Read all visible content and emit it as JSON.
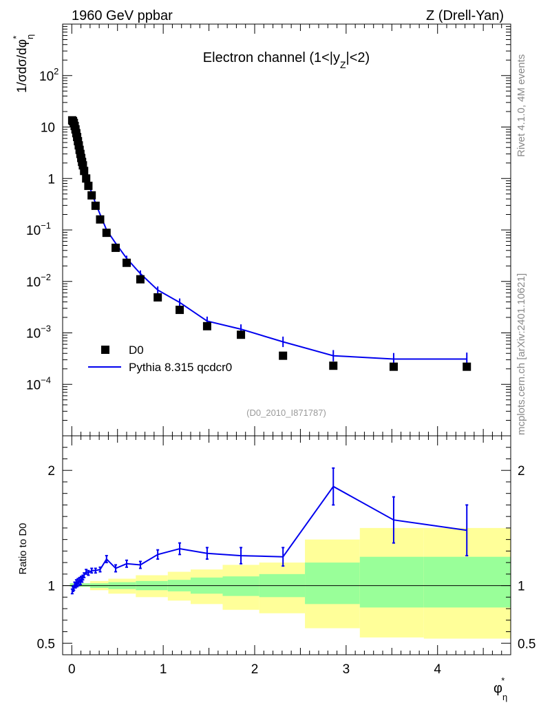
{
  "header": {
    "left": "1960 GeV ppbar",
    "right": "Z (Drell-Yan)"
  },
  "side": {
    "rivet": "Rivet 4.1.0,  4M events",
    "mcplots": "mcplots.cern.ch [arXiv:2401.10621]"
  },
  "colors": {
    "mc": "#0000ee",
    "data": "#000000",
    "band_outer": "#ffff99",
    "band_inner": "#99ff99"
  },
  "chart_data": [
    {
      "type": "scatter",
      "title": "Electron channel (1<|yZ|<2)",
      "title_main": "Electron channel (1<|y",
      "title_sub": "Z",
      "title_end": "|<2)",
      "ylabel": "1/σdσ/dφ*η",
      "ylabel_main": "1/σdσ/dφ",
      "ylabel_sup": "*",
      "ylabel_sub": "η",
      "yscale": "log",
      "xlim": [
        -0.1,
        4.8
      ],
      "ylim": [
        1e-05,
        1000
      ],
      "y_ticks": [
        {
          "v": 0.0001,
          "base": "10",
          "exp": "−4"
        },
        {
          "v": 0.001,
          "base": "10",
          "exp": "−3"
        },
        {
          "v": 0.01,
          "base": "10",
          "exp": "−2"
        },
        {
          "v": 0.1,
          "base": "10",
          "exp": "−1"
        },
        {
          "v": 1,
          "base": "1",
          "exp": ""
        },
        {
          "v": 10,
          "base": "10",
          "exp": ""
        },
        {
          "v": 100,
          "base": "10",
          "exp": "2"
        }
      ],
      "watermark": "(D0_2010_I871787)",
      "legend": [
        {
          "label": "D0",
          "kind": "marker"
        },
        {
          "label": "Pythia 8.315 qcdcr0",
          "kind": "line"
        }
      ],
      "series": [
        {
          "name": "D0",
          "x": [
            0.0045,
            0.0135,
            0.0225,
            0.0315,
            0.0405,
            0.0495,
            0.0585,
            0.0675,
            0.0765,
            0.0855,
            0.0945,
            0.1035,
            0.1125,
            0.1215,
            0.135,
            0.1575,
            0.1815,
            0.2175,
            0.26,
            0.31,
            0.38,
            0.48,
            0.6,
            0.75,
            0.94,
            1.18,
            1.48,
            1.85,
            2.31,
            2.86,
            3.52,
            4.32
          ],
          "y": [
            13.5,
            13.0,
            12.0,
            10.5,
            9.0,
            7.6,
            6.4,
            5.3,
            4.4,
            3.6,
            3.0,
            2.5,
            2.1,
            1.8,
            1.4,
            1.0,
            0.72,
            0.47,
            0.295,
            0.16,
            0.088,
            0.045,
            0.023,
            0.011,
            0.0049,
            0.0028,
            0.00135,
            0.00092,
            0.00036,
            0.00023,
            0.00022,
            0.00022
          ]
        },
        {
          "name": "Pythia 8.315 qcdcr0",
          "x": [
            0.0045,
            0.0135,
            0.0225,
            0.0315,
            0.0405,
            0.0495,
            0.0585,
            0.0675,
            0.0765,
            0.0855,
            0.0945,
            0.1035,
            0.1125,
            0.1215,
            0.135,
            0.1575,
            0.1815,
            0.2175,
            0.26,
            0.31,
            0.38,
            0.48,
            0.6,
            0.75,
            0.94,
            1.18,
            1.48,
            1.85,
            2.31,
            2.86,
            3.52,
            4.32
          ],
          "y": [
            12.8,
            12.6,
            11.8,
            10.6,
            9.0,
            7.8,
            6.5,
            5.5,
            4.5,
            3.8,
            3.1,
            2.7,
            2.2,
            2.0,
            1.55,
            1.12,
            0.8,
            0.53,
            0.33,
            0.2,
            0.1,
            0.055,
            0.028,
            0.0142,
            0.0068,
            0.0039,
            0.0017,
            0.00118,
            0.00067,
            0.00036,
            0.00031,
            0.00031
          ]
        }
      ]
    },
    {
      "type": "line",
      "ylabel": "Ratio to D0",
      "xlabel": "φ*η",
      "xlabel_main": "φ",
      "xlabel_sup": "*",
      "xlabel_sub": "η",
      "xlim": [
        -0.1,
        4.8
      ],
      "ylim": [
        0.4,
        2.3
      ],
      "x_ticks": [
        "0",
        "1",
        "2",
        "3",
        "4"
      ],
      "y_ticks": [
        "0.5",
        "1",
        "2"
      ],
      "ratio": {
        "x": [
          0.0045,
          0.0135,
          0.0225,
          0.0315,
          0.0405,
          0.0495,
          0.0585,
          0.0675,
          0.0765,
          0.0855,
          0.0945,
          0.1035,
          0.1125,
          0.1215,
          0.135,
          0.1575,
          0.1815,
          0.2175,
          0.26,
          0.31,
          0.38,
          0.48,
          0.6,
          0.75,
          0.94,
          1.18,
          1.48,
          1.85,
          2.31,
          2.86,
          3.52,
          4.32
        ],
        "y": [
          0.95,
          0.97,
          0.98,
          1.01,
          1.0,
          1.03,
          1.01,
          1.04,
          1.02,
          1.05,
          1.03,
          1.06,
          1.05,
          1.07,
          1.09,
          1.12,
          1.11,
          1.13,
          1.13,
          1.14,
          1.23,
          1.15,
          1.19,
          1.18,
          1.27,
          1.32,
          1.28,
          1.26,
          1.25,
          1.86,
          1.57,
          1.48
        ],
        "err": [
          0.02,
          0.02,
          0.02,
          0.02,
          0.02,
          0.02,
          0.02,
          0.02,
          0.02,
          0.02,
          0.02,
          0.02,
          0.02,
          0.02,
          0.02,
          0.02,
          0.02,
          0.02,
          0.02,
          0.02,
          0.03,
          0.03,
          0.03,
          0.03,
          0.04,
          0.05,
          0.05,
          0.07,
          0.08,
          0.16,
          0.2,
          0.22
        ]
      },
      "bands": [
        {
          "x0": -0.02,
          "x1": 0.2,
          "out_lo": 0.99,
          "out_hi": 1.02,
          "in_lo": 0.99,
          "in_hi": 1.02
        },
        {
          "x0": 0.2,
          "x1": 0.4,
          "out_lo": 0.96,
          "out_hi": 1.04,
          "in_lo": 0.98,
          "in_hi": 1.02
        },
        {
          "x0": 0.4,
          "x1": 0.7,
          "out_lo": 0.93,
          "out_hi": 1.06,
          "in_lo": 0.97,
          "in_hi": 1.03
        },
        {
          "x0": 0.7,
          "x1": 1.05,
          "out_lo": 0.9,
          "out_hi": 1.09,
          "in_lo": 0.96,
          "in_hi": 1.04
        },
        {
          "x0": 1.05,
          "x1": 1.3,
          "out_lo": 0.87,
          "out_hi": 1.12,
          "in_lo": 0.95,
          "in_hi": 1.05
        },
        {
          "x0": 1.3,
          "x1": 1.65,
          "out_lo": 0.84,
          "out_hi": 1.14,
          "in_lo": 0.93,
          "in_hi": 1.07
        },
        {
          "x0": 1.65,
          "x1": 2.05,
          "out_lo": 0.79,
          "out_hi": 1.18,
          "in_lo": 0.91,
          "in_hi": 1.08
        },
        {
          "x0": 2.05,
          "x1": 2.55,
          "out_lo": 0.76,
          "out_hi": 1.2,
          "in_lo": 0.9,
          "in_hi": 1.1
        },
        {
          "x0": 2.55,
          "x1": 3.15,
          "out_lo": 0.63,
          "out_hi": 1.4,
          "in_lo": 0.84,
          "in_hi": 1.2
        },
        {
          "x0": 3.15,
          "x1": 3.85,
          "out_lo": 0.55,
          "out_hi": 1.5,
          "in_lo": 0.81,
          "in_hi": 1.25
        },
        {
          "x0": 3.85,
          "x1": 4.8,
          "out_lo": 0.54,
          "out_hi": 1.5,
          "in_lo": 0.81,
          "in_hi": 1.25
        }
      ]
    }
  ]
}
